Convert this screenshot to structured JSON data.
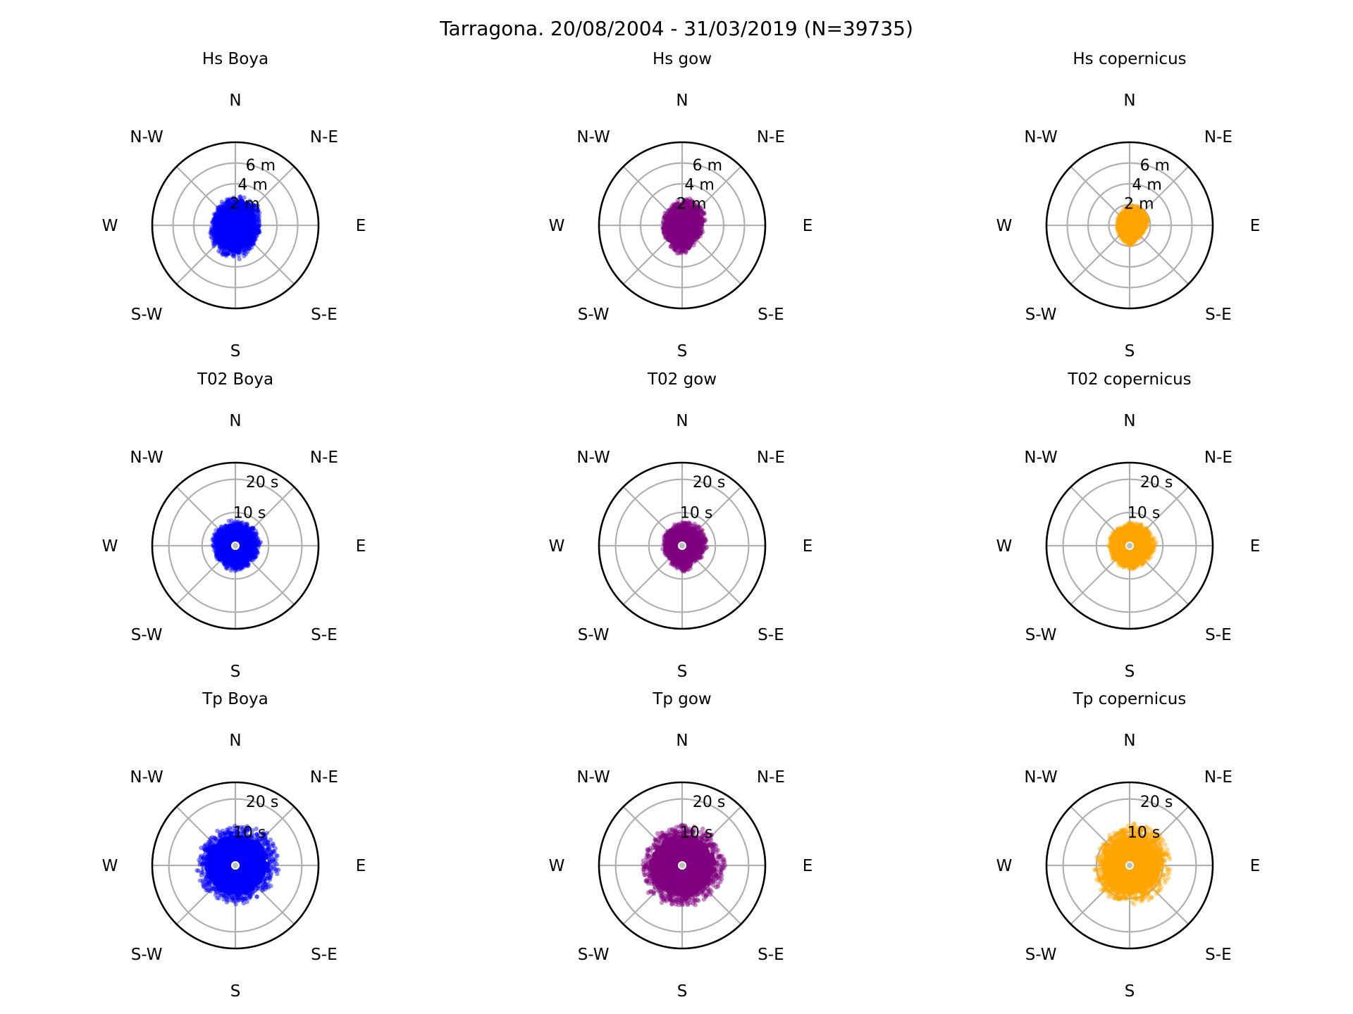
{
  "title": "Tarragona. 20/08/2004 - 31/03/2019 (N=39735)",
  "directions": [
    "N",
    "N-E",
    "E",
    "S-E",
    "S",
    "S-W",
    "W",
    "N-W"
  ],
  "colors": {
    "Boya": "#0000ff",
    "gow": "#800080",
    "copernicus": "#ffa500",
    "grid": "#b0b0b0",
    "center_marker": "#bdbdbd"
  },
  "chart_data": [
    {
      "type": "scatter",
      "projection": "polar",
      "title": "Hs Boya",
      "variable": "Hs",
      "source": "Boya",
      "color": "#0000ff",
      "r_max": 8,
      "r_ticks": [
        2,
        4,
        6
      ],
      "r_tick_labels": [
        "2 m",
        "4 m",
        "6 m"
      ],
      "n_points": 39735,
      "spread": {
        "N": 2.7,
        "N-E": 2.7,
        "E": 2.2,
        "S-E": 2.5,
        "S": 3.1,
        "S-W": 2.8,
        "W": 2.1,
        "N-W": 2.3
      }
    },
    {
      "type": "scatter",
      "projection": "polar",
      "title": "Hs gow",
      "variable": "Hs",
      "source": "gow",
      "color": "#800080",
      "r_max": 8,
      "r_ticks": [
        2,
        4,
        6
      ],
      "r_tick_labels": [
        "2 m",
        "4 m",
        "6 m"
      ],
      "n_points": 39735,
      "spread": {
        "N": 2.4,
        "N-E": 2.5,
        "E": 2.0,
        "S-E": 1.8,
        "S": 2.7,
        "S-W": 2.0,
        "W": 1.7,
        "N-W": 1.9
      }
    },
    {
      "type": "scatter",
      "projection": "polar",
      "title": "Hs copernicus",
      "variable": "Hs",
      "source": "copernicus",
      "color": "#ffa500",
      "r_max": 8,
      "r_ticks": [
        2,
        4,
        6
      ],
      "r_tick_labels": [
        "2 m",
        "4 m",
        "6 m"
      ],
      "n_points": 39735,
      "spread": {
        "N": 1.8,
        "N-E": 2.0,
        "E": 1.6,
        "S-E": 1.4,
        "S": 1.8,
        "S-W": 1.3,
        "W": 1.1,
        "N-W": 1.3
      }
    },
    {
      "type": "scatter",
      "projection": "polar",
      "title": "T02 Boya",
      "variable": "T02",
      "source": "Boya",
      "color": "#0000ff",
      "r_max": 25,
      "r_ticks": [
        10,
        20
      ],
      "r_tick_labels": [
        "10 s",
        "20 s"
      ],
      "n_points": 39735,
      "spread": {
        "N": 7.0,
        "N-E": 7.5,
        "E": 7.0,
        "S-E": 6.5,
        "S": 7.5,
        "S-W": 6.5,
        "W": 6.5,
        "N-W": 7.0
      }
    },
    {
      "type": "scatter",
      "projection": "polar",
      "title": "T02 gow",
      "variable": "T02",
      "source": "gow",
      "color": "#800080",
      "r_max": 25,
      "r_ticks": [
        10,
        20
      ],
      "r_tick_labels": [
        "10 s",
        "20 s"
      ],
      "n_points": 39735,
      "spread": {
        "N": 6.5,
        "N-E": 7.5,
        "E": 7.0,
        "S-E": 6.0,
        "S": 7.5,
        "S-W": 5.5,
        "W": 5.5,
        "N-W": 6.0
      }
    },
    {
      "type": "scatter",
      "projection": "polar",
      "title": "T02 copernicus",
      "variable": "T02",
      "source": "copernicus",
      "color": "#ffa500",
      "r_max": 25,
      "r_ticks": [
        10,
        20
      ],
      "r_tick_labels": [
        "10 s",
        "20 s"
      ],
      "n_points": 39735,
      "spread": {
        "N": 6.5,
        "N-E": 7.0,
        "E": 7.5,
        "S-E": 6.5,
        "S": 7.0,
        "S-W": 6.0,
        "W": 6.0,
        "N-W": 6.0
      }
    },
    {
      "type": "scatter",
      "projection": "polar",
      "title": "Tp Boya",
      "variable": "Tp",
      "source": "Boya",
      "color": "#0000ff",
      "r_max": 25,
      "r_ticks": [
        10,
        20
      ],
      "r_tick_labels": [
        "10 s",
        "20 s"
      ],
      "n_points": 39735,
      "spread": {
        "N": 11.0,
        "N-E": 12.5,
        "E": 12.5,
        "S-E": 11.0,
        "S": 11.5,
        "S-W": 11.0,
        "W": 11.0,
        "N-W": 11.0
      }
    },
    {
      "type": "scatter",
      "projection": "polar",
      "title": "Tp gow",
      "variable": "Tp",
      "source": "gow",
      "color": "#800080",
      "r_max": 25,
      "r_ticks": [
        10,
        20
      ],
      "r_tick_labels": [
        "10 s",
        "20 s"
      ],
      "n_points": 39735,
      "spread": {
        "N": 11.5,
        "N-E": 12.0,
        "E": 12.5,
        "S-E": 11.5,
        "S": 12.0,
        "S-W": 12.0,
        "W": 12.0,
        "N-W": 11.5
      }
    },
    {
      "type": "scatter",
      "projection": "polar",
      "title": "Tp copernicus",
      "variable": "Tp",
      "source": "copernicus",
      "color": "#ffa500",
      "r_max": 25,
      "r_ticks": [
        10,
        20
      ],
      "r_tick_labels": [
        "10 s",
        "20 s"
      ],
      "n_points": 39735,
      "spread": {
        "N": 12.0,
        "N-E": 12.0,
        "E": 11.5,
        "S-E": 11.5,
        "S": 11.0,
        "S-W": 11.0,
        "W": 9.5,
        "N-W": 10.0
      }
    }
  ]
}
